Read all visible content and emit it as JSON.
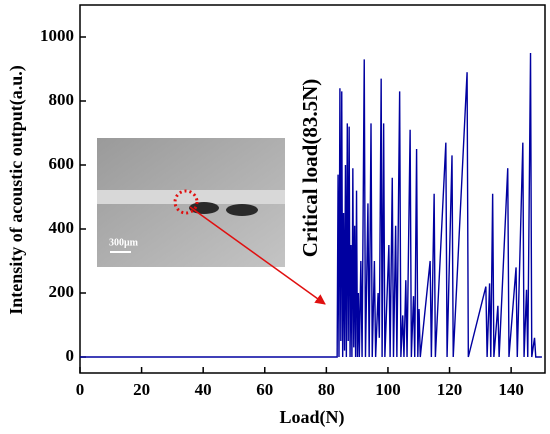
{
  "chart_data": {
    "type": "line",
    "xlabel": "Load(N)",
    "ylabel": "Intensity of acoustic output(a.u.)",
    "annotation": "Critical load(83.5N)",
    "inset_scale_label": "300μm",
    "xlim": [
      0,
      151
    ],
    "ylim": [
      -50,
      1100
    ],
    "xticks": [
      0,
      20,
      40,
      60,
      80,
      100,
      120,
      140
    ],
    "yticks": [
      0,
      200,
      400,
      600,
      800,
      1000
    ],
    "series": [
      {
        "color": "#0000a0",
        "x": [
          0,
          83.5,
          83.8,
          84.1,
          84.4,
          84.7,
          85.0,
          85.3,
          85.6,
          85.9,
          86.2,
          86.5,
          86.8,
          87.1,
          87.4,
          87.7,
          88.0,
          88.3,
          88.6,
          88.9,
          89.2,
          89.5,
          89.8,
          90.1,
          90.4,
          90.7,
          91.2,
          91.6,
          92.3,
          92.7,
          93.5,
          93.9,
          94.5,
          94.9,
          95.6,
          96.0,
          96.8,
          97.2,
          97.8,
          98.1,
          98.6,
          99.0,
          100.3,
          100.7,
          101.4,
          101.8,
          102.5,
          102.9,
          103.8,
          104.2,
          104.8,
          105.2,
          105.8,
          106.2,
          107.2,
          107.6,
          108.3,
          108.7,
          109.3,
          109.7,
          110.1,
          110.5,
          113.7,
          114.1,
          115.0,
          115.4,
          118.8,
          119.2,
          120.8,
          121.2,
          125.7,
          126.1,
          131.8,
          132.2,
          133.0,
          133.4,
          134.0,
          134.4,
          135.7,
          136.1,
          138.9,
          139.3,
          141.6,
          142.0,
          143.8,
          144.2,
          145.0,
          145.4,
          146.3,
          146.7,
          147.6,
          148.0,
          150
        ],
        "values": [
          0,
          0,
          570,
          0,
          840,
          50,
          830,
          0,
          450,
          20,
          600,
          0,
          730,
          50,
          720,
          0,
          350,
          0,
          590,
          30,
          410,
          0,
          520,
          0,
          200,
          0,
          300,
          0,
          930,
          0,
          480,
          0,
          730,
          0,
          300,
          0,
          200,
          60,
          870,
          0,
          730,
          0,
          350,
          0,
          560,
          0,
          410,
          0,
          830,
          0,
          130,
          0,
          240,
          0,
          710,
          0,
          190,
          0,
          650,
          0,
          150,
          0,
          300,
          0,
          510,
          0,
          670,
          0,
          630,
          0,
          890,
          0,
          220,
          0,
          230,
          0,
          510,
          0,
          160,
          0,
          590,
          0,
          280,
          0,
          670,
          0,
          210,
          0,
          950,
          0,
          60,
          0,
          0
        ]
      }
    ]
  }
}
